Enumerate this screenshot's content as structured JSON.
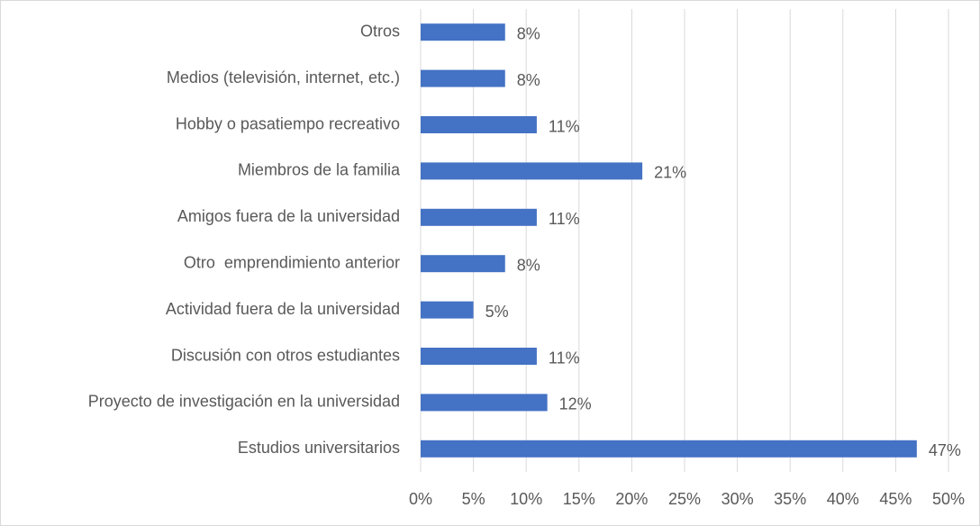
{
  "chart_data": {
    "type": "bar",
    "orientation": "horizontal",
    "categories": [
      "Otros",
      "Medios (televisión, internet, etc.)",
      "Hobby o pasatiempo recreativo",
      "Miembros de la familia",
      "Amigos fuera de la universidad",
      "Otro  emprendimiento anterior",
      "Actividad fuera de la universidad",
      "Discusión con otros estudiantes",
      "Proyecto de investigación en la universidad",
      "Estudios universitarios"
    ],
    "values": [
      8,
      8,
      11,
      21,
      11,
      8,
      5,
      11,
      12,
      47
    ],
    "value_labels": [
      "8%",
      "8%",
      "11%",
      "21%",
      "11%",
      "8%",
      "5%",
      "11%",
      "12%",
      "47%"
    ],
    "color": "#4472c4",
    "xlim": [
      0,
      50
    ],
    "xticks": [
      {
        "value": 0,
        "label": "0%"
      },
      {
        "value": 5,
        "label": "5%"
      },
      {
        "value": 10,
        "label": "10%"
      },
      {
        "value": 15,
        "label": "15%"
      },
      {
        "value": 20,
        "label": "20%"
      },
      {
        "value": 25,
        "label": "25%"
      },
      {
        "value": 30,
        "label": "30%"
      },
      {
        "value": 35,
        "label": "35%"
      },
      {
        "value": 40,
        "label": "40%"
      },
      {
        "value": 45,
        "label": "45%"
      },
      {
        "value": 50,
        "label": "50%"
      }
    ],
    "grid": true
  }
}
